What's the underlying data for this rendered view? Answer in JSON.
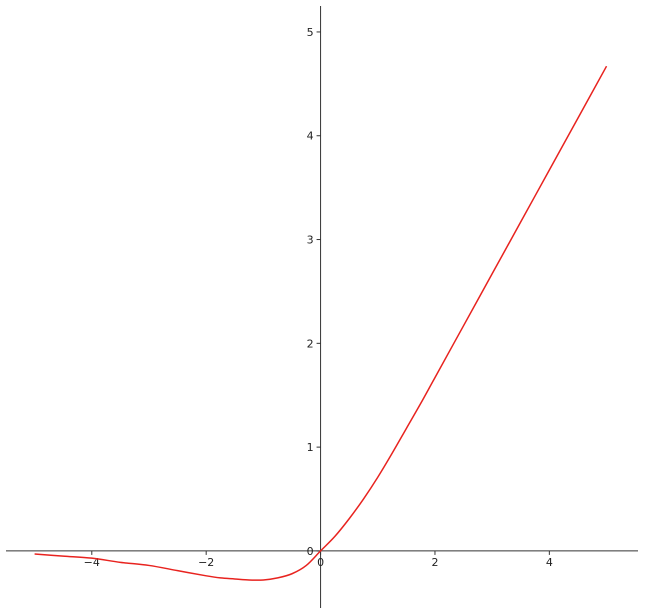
{
  "chart_data": {
    "type": "line",
    "title": "",
    "xlabel": "",
    "ylabel": "",
    "xlim": [
      -5.5,
      5.55
    ],
    "ylim": [
      -0.55,
      5.25
    ],
    "x_ticks": [
      {
        "value": -4,
        "label": "−4"
      },
      {
        "value": -2,
        "label": "−2"
      },
      {
        "value": 0,
        "label": "0"
      },
      {
        "value": 2,
        "label": "2"
      },
      {
        "value": 4,
        "label": "4"
      }
    ],
    "y_ticks": [
      {
        "value": 0,
        "label": "0"
      },
      {
        "value": 1,
        "label": "1"
      },
      {
        "value": 2,
        "label": "2"
      },
      {
        "value": 3,
        "label": "3"
      },
      {
        "value": 4,
        "label": "4"
      },
      {
        "value": 5,
        "label": "5"
      }
    ],
    "grid": false,
    "legend": "none",
    "axes_style": "centered-at-origin",
    "axis_color": "#333333",
    "series": [
      {
        "color": "#e8231f",
        "x": [
          -5,
          -4.5,
          -4,
          -3.5,
          -3,
          -2.5,
          -2,
          -1.75,
          -1.5,
          -1.25,
          -1,
          -0.75,
          -0.5,
          -0.25,
          0,
          0.25,
          0.5,
          0.75,
          1,
          1.25,
          1.5,
          1.75,
          2,
          2.5,
          3,
          3.5,
          4,
          4.5,
          5
        ],
        "y": [
          -0.03,
          -0.05,
          -0.07,
          -0.11,
          -0.14,
          -0.19,
          -0.24,
          -0.26,
          -0.27,
          -0.28,
          -0.28,
          -0.26,
          -0.22,
          -0.14,
          0,
          0.14,
          0.31,
          0.5,
          0.71,
          0.94,
          1.18,
          1.42,
          1.67,
          2.17,
          2.67,
          3.17,
          3.67,
          4.17,
          4.67
        ]
      }
    ]
  }
}
